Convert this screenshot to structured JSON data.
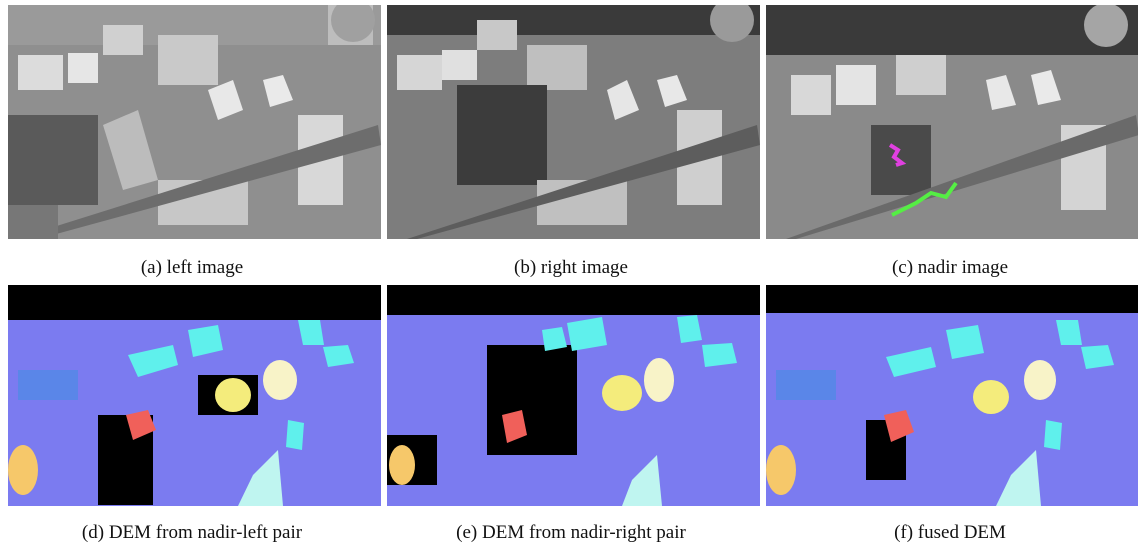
{
  "figure": {
    "captions": {
      "left_image": "(a) left image",
      "right_image": "(b) right image",
      "nadir_image": "(c) nadir image",
      "dem_nadir_left": "(d) DEM from nadir-left pair",
      "dem_nadir_right": "(e) DEM from nadir-right pair",
      "fused_dem": "(f) fused DEM"
    },
    "colors": {
      "dem_background": "#7b7bf0",
      "dem_low": "#5a86e8",
      "dem_cyan": "#5ff0ec",
      "dem_yellow": "#f4ec7c",
      "dem_cream": "#f8f3c8",
      "dem_red": "#f0605a",
      "dem_orange": "#f6c86a",
      "dem_void": "#000000",
      "nadir_marker_magenta": "#e040e0",
      "nadir_marker_green": "#55ee44"
    }
  }
}
